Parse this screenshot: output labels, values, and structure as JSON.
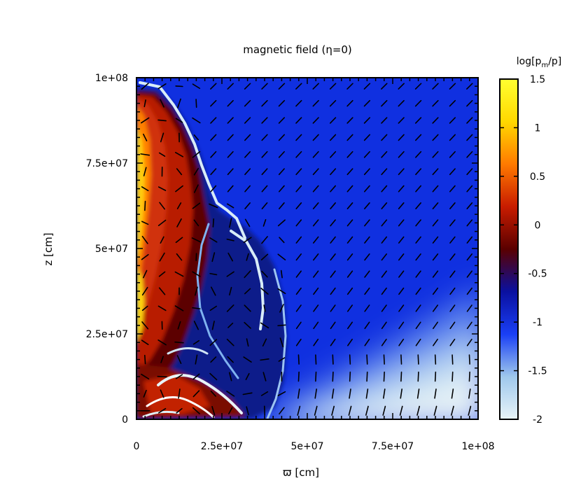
{
  "chart_data": {
    "type": "heatmap",
    "title": "magnetic field (η=0)",
    "xlabel": "ϖ [cm]",
    "ylabel": "z [cm]",
    "xlim": [
      0,
      100000000
    ],
    "ylim": [
      0,
      100000000
    ],
    "xticks": [
      {
        "value": 0,
        "label": "0"
      },
      {
        "value": 25000000,
        "label": "2.5e+07"
      },
      {
        "value": 50000000,
        "label": "5e+07"
      },
      {
        "value": 75000000,
        "label": "7.5e+07"
      },
      {
        "value": 100000000,
        "label": "1e+08"
      }
    ],
    "yticks": [
      {
        "value": 0,
        "label": "0"
      },
      {
        "value": 25000000,
        "label": "2.5e+07"
      },
      {
        "value": 50000000,
        "label": "5e+07"
      },
      {
        "value": 75000000,
        "label": "7.5e+07"
      },
      {
        "value": 100000000,
        "label": "1e+08"
      }
    ],
    "colorbar": {
      "title": "log[p_m/p]",
      "title_main": "log[p",
      "title_sub": "m",
      "title_tail": "/p]",
      "range": [
        -2,
        1.5
      ],
      "ticks": [
        {
          "value": 1.5,
          "label": "1.5"
        },
        {
          "value": 1,
          "label": "1"
        },
        {
          "value": 0.5,
          "label": "0.5"
        },
        {
          "value": 0,
          "label": "0"
        },
        {
          "value": -0.5,
          "label": "-0.5"
        },
        {
          "value": -1,
          "label": "-1"
        },
        {
          "value": -1.5,
          "label": "-1.5"
        },
        {
          "value": -2,
          "label": "-2"
        }
      ],
      "colors": [
        "#e8f4f8",
        "#9fc8ec",
        "#1a3ff5",
        "#0a10a0",
        "#5a0000",
        "#c81c00",
        "#ff7a00",
        "#ffd800",
        "#ffff30"
      ]
    },
    "overlay": "magnetic field direction vectors"
  }
}
